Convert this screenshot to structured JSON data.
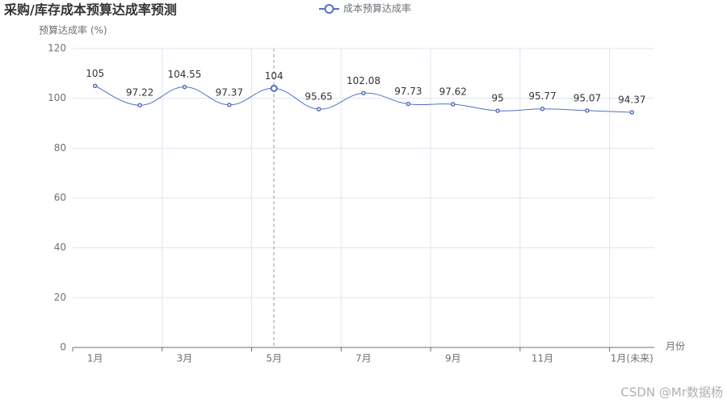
{
  "chart_data": {
    "type": "line",
    "title": "采购/库存成本预算达成率预测",
    "y_label": "预算达成率 (%)",
    "x_label": "月份",
    "watermark": "CSDN @Mr数据杨",
    "categories": [
      "1月",
      null,
      "3月",
      null,
      "5月",
      null,
      "7月",
      null,
      "9月",
      null,
      "11月",
      null,
      "1月(未来)"
    ],
    "series": [
      {
        "name": "成本预算达成率",
        "color": "#5470c6",
        "values": [
          105,
          97.22,
          104.55,
          97.37,
          104,
          95.65,
          102.08,
          97.73,
          97.62,
          95,
          95.77,
          95.07,
          94.37
        ]
      }
    ],
    "ylim": [
      0,
      120
    ],
    "yticks": [
      0,
      20,
      40,
      60,
      80,
      100,
      120
    ],
    "grid": true
  }
}
